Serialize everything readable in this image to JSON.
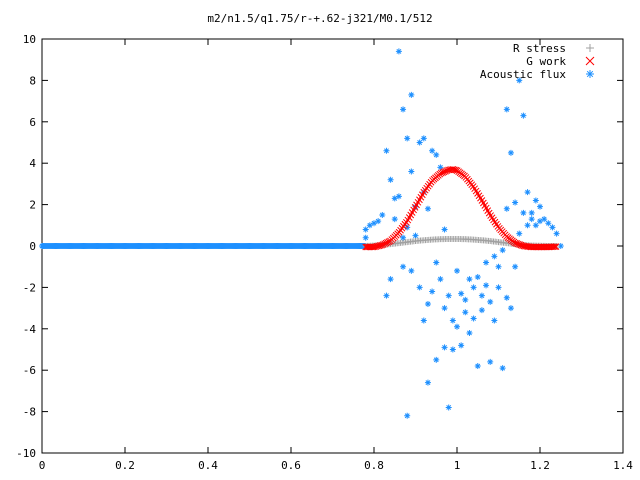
{
  "chart_data": {
    "type": "scatter",
    "title": "m2/n1.5/q1.75/r-+.62-j321/M0.1/512",
    "xlabel": "",
    "ylabel": "",
    "xlim": [
      0,
      1.4
    ],
    "ylim": [
      -10,
      10
    ],
    "x_ticks": [
      "0",
      "0.2",
      "0.4",
      "0.6",
      "0.8",
      "1",
      "1.2",
      "1.4"
    ],
    "y_ticks": [
      "10",
      "8",
      "6",
      "4",
      "2",
      "0",
      "-2",
      "-4",
      "-6",
      "-8",
      "-10"
    ],
    "x_tick_values": [
      0,
      0.2,
      0.4,
      0.6,
      0.8,
      1.0,
      1.2,
      1.4
    ],
    "y_tick_values": [
      10,
      8,
      6,
      4,
      2,
      0,
      -2,
      -4,
      -6,
      -8,
      -10
    ],
    "grid": false,
    "legend_position": "top-right",
    "series": [
      {
        "name": "R stress",
        "marker": "plus",
        "color": "#a0a0a0",
        "description": "near zero, slight hump to ~0.35 near x=1",
        "x": [
          0.78,
          0.8,
          0.82,
          0.84,
          0.86,
          0.88,
          0.9,
          0.92,
          0.94,
          0.96,
          0.98,
          1.0,
          1.02,
          1.04,
          1.06,
          1.08,
          1.1,
          1.12,
          1.14,
          1.16,
          1.18,
          1.2,
          1.22,
          1.24
        ],
        "y": [
          0.0,
          0.02,
          0.05,
          0.09,
          0.14,
          0.19,
          0.24,
          0.28,
          0.31,
          0.33,
          0.34,
          0.34,
          0.33,
          0.31,
          0.28,
          0.24,
          0.19,
          0.14,
          0.09,
          0.05,
          0.02,
          0.01,
          0.0,
          0.0
        ]
      },
      {
        "name": "G work",
        "marker": "cross",
        "color": "#ff0000",
        "description": "Gaussian bump peaking ~3.7 at x~0.99",
        "x": [
          0.78,
          0.8,
          0.82,
          0.84,
          0.86,
          0.88,
          0.9,
          0.92,
          0.94,
          0.96,
          0.98,
          0.99,
          1.0,
          1.02,
          1.04,
          1.06,
          1.08,
          1.1,
          1.12,
          1.14,
          1.16,
          1.18,
          1.2,
          1.22,
          1.24
        ],
        "y": [
          -0.05,
          -0.05,
          0.05,
          0.25,
          0.65,
          1.2,
          1.9,
          2.6,
          3.15,
          3.5,
          3.68,
          3.7,
          3.65,
          3.35,
          2.85,
          2.2,
          1.5,
          0.9,
          0.45,
          0.15,
          0.0,
          -0.05,
          -0.05,
          -0.05,
          -0.03
        ]
      },
      {
        "name": "Acoustic flux",
        "marker": "star",
        "color": "#1e90ff",
        "description": "flat at 0 from x=0 to 0.78, then scattered points",
        "flat_x_range": [
          0,
          0.78
        ],
        "flat_y": 0,
        "scatter": [
          [
            0.78,
            0.4
          ],
          [
            0.78,
            0.8
          ],
          [
            0.79,
            1.0
          ],
          [
            0.8,
            1.1
          ],
          [
            0.81,
            1.2
          ],
          [
            0.82,
            1.5
          ],
          [
            0.83,
            4.6
          ],
          [
            0.83,
            -2.4
          ],
          [
            0.84,
            3.2
          ],
          [
            0.84,
            -1.6
          ],
          [
            0.85,
            2.3
          ],
          [
            0.85,
            1.3
          ],
          [
            0.86,
            2.4
          ],
          [
            0.86,
            9.4
          ],
          [
            0.87,
            6.6
          ],
          [
            0.87,
            0.4
          ],
          [
            0.87,
            -1.0
          ],
          [
            0.88,
            5.2
          ],
          [
            0.88,
            0.9
          ],
          [
            0.88,
            -8.2
          ],
          [
            0.89,
            7.3
          ],
          [
            0.89,
            3.6
          ],
          [
            0.89,
            -1.2
          ],
          [
            0.9,
            1.9
          ],
          [
            0.9,
            0.5
          ],
          [
            0.91,
            5.0
          ],
          [
            0.91,
            -2.0
          ],
          [
            0.92,
            5.2
          ],
          [
            0.92,
            2.6
          ],
          [
            0.92,
            -3.6
          ],
          [
            0.93,
            1.8
          ],
          [
            0.93,
            -2.8
          ],
          [
            0.93,
            -6.6
          ],
          [
            0.94,
            4.6
          ],
          [
            0.94,
            -2.2
          ],
          [
            0.95,
            4.4
          ],
          [
            0.95,
            -0.8
          ],
          [
            0.95,
            -5.5
          ],
          [
            0.96,
            3.8
          ],
          [
            0.96,
            -1.6
          ],
          [
            0.97,
            0.8
          ],
          [
            0.97,
            -3.0
          ],
          [
            0.97,
            -4.9
          ],
          [
            0.98,
            -2.4
          ],
          [
            0.98,
            -7.8
          ],
          [
            0.99,
            -3.6
          ],
          [
            0.99,
            -5.0
          ],
          [
            1.0,
            -1.2
          ],
          [
            1.0,
            -3.9
          ],
          [
            1.01,
            -2.3
          ],
          [
            1.01,
            -4.8
          ],
          [
            1.02,
            -3.2
          ],
          [
            1.02,
            -2.6
          ],
          [
            1.03,
            -1.6
          ],
          [
            1.03,
            -4.2
          ],
          [
            1.04,
            -3.5
          ],
          [
            1.04,
            -2.0
          ],
          [
            1.05,
            -1.5
          ],
          [
            1.05,
            -5.8
          ],
          [
            1.06,
            -2.4
          ],
          [
            1.06,
            -3.1
          ],
          [
            1.07,
            -0.8
          ],
          [
            1.07,
            -1.9
          ],
          [
            1.08,
            -2.7
          ],
          [
            1.08,
            -5.6
          ],
          [
            1.09,
            -0.5
          ],
          [
            1.09,
            -3.6
          ],
          [
            1.1,
            -1.0
          ],
          [
            1.1,
            -2.0
          ],
          [
            1.11,
            -0.2
          ],
          [
            1.11,
            -5.9
          ],
          [
            1.12,
            6.6
          ],
          [
            1.12,
            1.8
          ],
          [
            1.12,
            -2.5
          ],
          [
            1.13,
            4.5
          ],
          [
            1.13,
            -3.0
          ],
          [
            1.14,
            2.1
          ],
          [
            1.14,
            -1.0
          ],
          [
            1.15,
            8.0
          ],
          [
            1.15,
            0.6
          ],
          [
            1.16,
            6.3
          ],
          [
            1.16,
            1.6
          ],
          [
            1.17,
            2.6
          ],
          [
            1.17,
            1.0
          ],
          [
            1.18,
            1.3
          ],
          [
            1.19,
            1.0
          ],
          [
            1.2,
            1.2
          ],
          [
            1.21,
            1.3
          ],
          [
            1.22,
            1.1
          ],
          [
            1.23,
            0.9
          ],
          [
            1.24,
            0.6
          ],
          [
            1.25,
            0.0
          ],
          [
            1.19,
            2.2
          ],
          [
            1.2,
            1.9
          ],
          [
            1.18,
            1.6
          ]
        ]
      }
    ]
  }
}
